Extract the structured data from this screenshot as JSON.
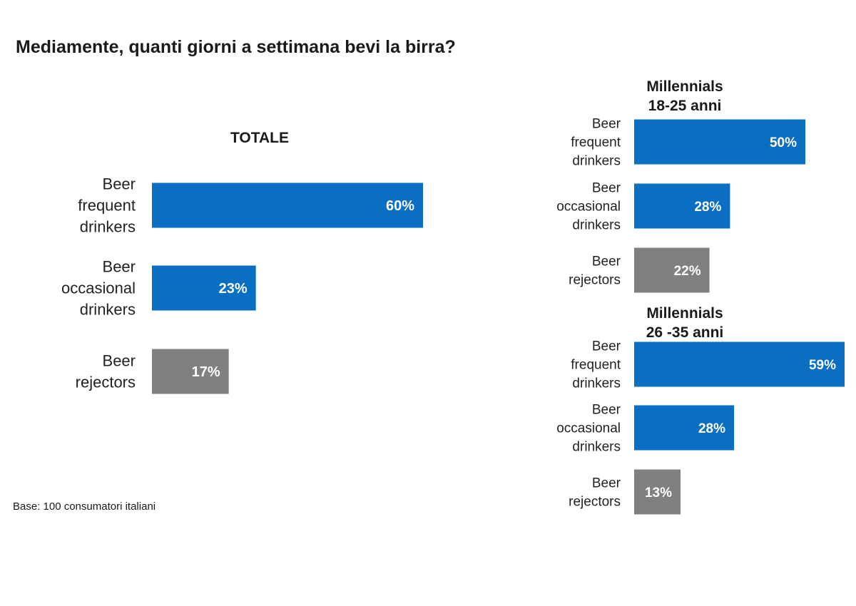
{
  "title": "Mediamente, quanti giorni a settimana bevi la birra?",
  "footnote": "Base: 100 consumatori italiani",
  "colors": {
    "drinkers": "#0A6FC2",
    "rejectors": "#808080"
  },
  "chart_data": [
    {
      "type": "bar",
      "orientation": "horizontal",
      "title_lines": [
        "TOTALE"
      ],
      "categories": [
        [
          "Beer",
          "frequent",
          "drinkers"
        ],
        [
          "Beer",
          "occasional",
          "drinkers"
        ],
        [
          "Beer",
          "rejectors"
        ]
      ],
      "values": [
        60,
        23,
        17
      ],
      "value_labels": [
        "60%",
        "23%",
        "17%"
      ],
      "bar_colors": [
        "#0A6FC2",
        "#0A6FC2",
        "#808080"
      ]
    },
    {
      "type": "bar",
      "orientation": "horizontal",
      "title_lines": [
        "Millennials",
        "18-25 anni"
      ],
      "categories": [
        [
          "Beer",
          "frequent",
          "drinkers"
        ],
        [
          "Beer",
          "occasional",
          "drinkers"
        ],
        [
          "Beer",
          "rejectors"
        ]
      ],
      "values": [
        50,
        28,
        22
      ],
      "value_labels": [
        "50%",
        "28%",
        "22%"
      ],
      "bar_colors": [
        "#0A6FC2",
        "#0A6FC2",
        "#808080"
      ]
    },
    {
      "type": "bar",
      "orientation": "horizontal",
      "title_lines": [
        "Millennials",
        "26 -35 anni"
      ],
      "categories": [
        [
          "Beer",
          "frequent",
          "drinkers"
        ],
        [
          "Beer",
          "occasional",
          "drinkers"
        ],
        [
          "Beer",
          "rejectors"
        ]
      ],
      "values": [
        59,
        28,
        13
      ],
      "value_labels": [
        "59%",
        "28%",
        "13%"
      ],
      "bar_colors": [
        "#0A6FC2",
        "#0A6FC2",
        "#808080"
      ]
    }
  ]
}
